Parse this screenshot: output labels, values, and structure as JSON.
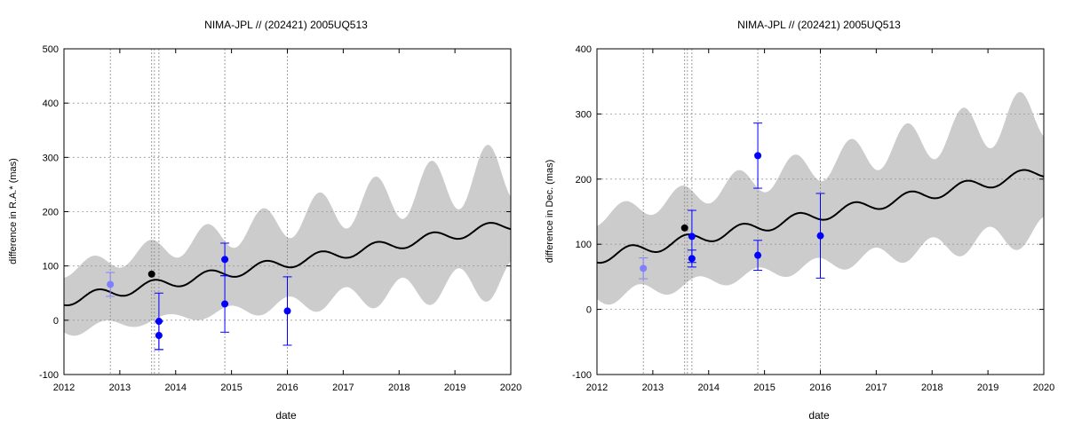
{
  "chart_data": [
    {
      "type": "line",
      "title": "NIMA-JPL // (202421) 2005UQ513",
      "xlabel": "date",
      "ylabel": "difference in R.A.* (mas)",
      "xlim": [
        2012,
        2020
      ],
      "ylim": [
        -100,
        500
      ],
      "x_ticks": [
        "2012",
        "2013",
        "2014",
        "2015",
        "2016",
        "2017",
        "2018",
        "2019",
        "2020"
      ],
      "y_ticks": [
        "-100",
        "0",
        "100",
        "200",
        "300",
        "400",
        "500"
      ],
      "grid": true,
      "vertical_markers": [
        2012.83,
        2013.57,
        2013.62,
        2013.7,
        2014.88,
        2016.0
      ],
      "ephemeris": {
        "base": 28,
        "slope": 17.5,
        "amplitude": 10,
        "uncertainty_base": 55,
        "uncertainty_slope": 8.5,
        "uncertainty_wave": 8
      },
      "series": [
        {
          "color": "#7f7fff",
          "points": [
            {
              "x": 2012.83,
              "y": 66,
              "err": 22
            }
          ]
        },
        {
          "color": "#000000",
          "points": [
            {
              "x": 2013.57,
              "y": 85,
              "err": 0
            }
          ]
        },
        {
          "color": "#0000ff",
          "points": [
            {
              "x": 2013.7,
              "y": -2,
              "err": 52
            },
            {
              "x": 2013.7,
              "y": -28,
              "err": 26
            },
            {
              "x": 2014.88,
              "y": 112,
              "err": 30
            },
            {
              "x": 2014.88,
              "y": 30,
              "err": 52
            },
            {
              "x": 2016.0,
              "y": 17,
              "err": 63
            }
          ]
        }
      ]
    },
    {
      "type": "line",
      "title": "NIMA-JPL // (202421) 2005UQ513",
      "xlabel": "date",
      "ylabel": "difference in Dec. (mas)",
      "xlim": [
        2012,
        2020
      ],
      "ylim": [
        -100,
        400
      ],
      "x_ticks": [
        "2012",
        "2013",
        "2014",
        "2015",
        "2016",
        "2017",
        "2018",
        "2019",
        "2020"
      ],
      "y_ticks": [
        "-100",
        "0",
        "100",
        "200",
        "300",
        "400"
      ],
      "grid": true,
      "vertical_markers": [
        2012.83,
        2013.57,
        2013.62,
        2013.7,
        2014.88,
        2016.0
      ],
      "ephemeris": {
        "base": 72,
        "slope": 16.5,
        "amplitude": 9,
        "uncertainty_base": 62,
        "uncertainty_slope": 5.5,
        "uncertainty_wave": 10
      },
      "series": [
        {
          "color": "#7f7fff",
          "points": [
            {
              "x": 2012.83,
              "y": 63,
              "err": 16
            }
          ]
        },
        {
          "color": "#000000",
          "points": [
            {
              "x": 2013.57,
              "y": 125,
              "err": 0
            }
          ]
        },
        {
          "color": "#0000ff",
          "points": [
            {
              "x": 2013.7,
              "y": 112,
              "err": 40
            },
            {
              "x": 2013.7,
              "y": 78,
              "err": 13
            },
            {
              "x": 2014.88,
              "y": 236,
              "err": 50
            },
            {
              "x": 2014.88,
              "y": 83,
              "err": 23
            },
            {
              "x": 2016.0,
              "y": 113,
              "err": 65
            }
          ]
        }
      ]
    }
  ],
  "colors": {
    "band": "#cccccc",
    "curve": "#000000",
    "grid": "#999999"
  }
}
